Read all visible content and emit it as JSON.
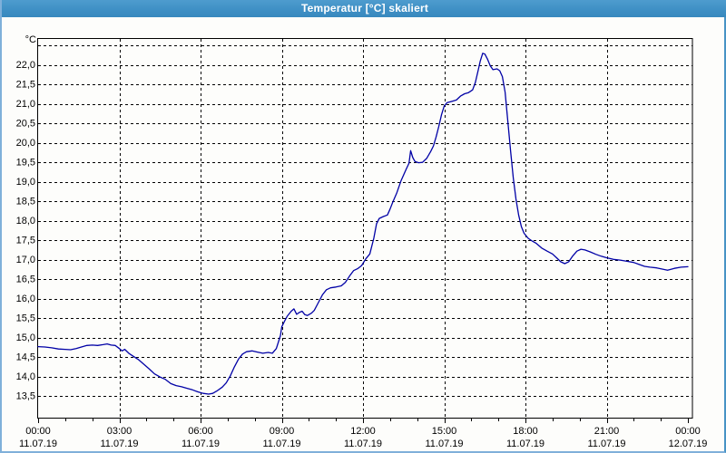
{
  "window": {
    "title": "Temperatur [°C] skaliert"
  },
  "colors": {
    "titlebar_bg": "#3F90C5",
    "titlebar_text": "#FFFFFF",
    "window_border": "#7FB0DA",
    "plot_background": "#FDFDFB",
    "frame": "#000000",
    "gridline": "#000000",
    "label_text": "#000000",
    "line": "#0101A6"
  },
  "y_axis": {
    "unit": "°C",
    "ticks": [
      {
        "label": "22,0",
        "value": 22.0
      },
      {
        "label": "21,5",
        "value": 21.5
      },
      {
        "label": "21,0",
        "value": 21.0
      },
      {
        "label": "20,5",
        "value": 20.5
      },
      {
        "label": "20,0",
        "value": 20.0
      },
      {
        "label": "19,5",
        "value": 19.5
      },
      {
        "label": "19,0",
        "value": 19.0
      },
      {
        "label": "18,5",
        "value": 18.5
      },
      {
        "label": "18,0",
        "value": 18.0
      },
      {
        "label": "17,5",
        "value": 17.5
      },
      {
        "label": "17,0",
        "value": 17.0
      },
      {
        "label": "16,5",
        "value": 16.5
      },
      {
        "label": "16,0",
        "value": 16.0
      },
      {
        "label": "15,5",
        "value": 15.5
      },
      {
        "label": "15,0",
        "value": 15.0
      },
      {
        "label": "14,5",
        "value": 14.5
      },
      {
        "label": "14,0",
        "value": 14.0
      },
      {
        "label": "13,5",
        "value": 13.5
      }
    ]
  },
  "x_axis": {
    "major_ticks": [
      {
        "hour": 0,
        "time": "00:00",
        "date": "11.07.19"
      },
      {
        "hour": 3,
        "time": "03:00",
        "date": "11.07.19"
      },
      {
        "hour": 6,
        "time": "06:00",
        "date": "11.07.19"
      },
      {
        "hour": 9,
        "time": "09:00",
        "date": "11.07.19"
      },
      {
        "hour": 12,
        "time": "12:00",
        "date": "11.07.19"
      },
      {
        "hour": 15,
        "time": "15:00",
        "date": "11.07.19"
      },
      {
        "hour": 18,
        "time": "18:00",
        "date": "11.07.19"
      },
      {
        "hour": 21,
        "time": "21:00",
        "date": "11.07.19"
      },
      {
        "hour": 24,
        "time": "00:00",
        "date": "12.07.19"
      }
    ],
    "minor_tick_every_hours": 1
  },
  "chart_data": {
    "type": "line",
    "title": "Temperatur [°C] skaliert",
    "xlabel": "",
    "ylabel": "°C",
    "xlim_hours": [
      0,
      24
    ],
    "grid": "dashed",
    "grid_y_min": 13.5,
    "grid_y_max": 22.5,
    "grid_y_step": 0.5,
    "grid_x_step_hours": 3,
    "legend": "none",
    "series": [
      {
        "name": "Temperatur",
        "color": "#0101A6",
        "points_hour_temp": [
          [
            0.0,
            14.77
          ],
          [
            0.25,
            14.76
          ],
          [
            0.5,
            14.74
          ],
          [
            0.75,
            14.71
          ],
          [
            1.0,
            14.7
          ],
          [
            1.2,
            14.69
          ],
          [
            1.4,
            14.72
          ],
          [
            1.6,
            14.76
          ],
          [
            1.8,
            14.8
          ],
          [
            2.0,
            14.81
          ],
          [
            2.2,
            14.8
          ],
          [
            2.4,
            14.82
          ],
          [
            2.55,
            14.84
          ],
          [
            2.7,
            14.81
          ],
          [
            2.85,
            14.8
          ],
          [
            3.0,
            14.72
          ],
          [
            3.1,
            14.66
          ],
          [
            3.2,
            14.7
          ],
          [
            3.35,
            14.6
          ],
          [
            3.5,
            14.53
          ],
          [
            3.7,
            14.44
          ],
          [
            3.9,
            14.32
          ],
          [
            4.1,
            14.2
          ],
          [
            4.3,
            14.07
          ],
          [
            4.5,
            13.99
          ],
          [
            4.7,
            13.93
          ],
          [
            4.9,
            13.82
          ],
          [
            5.1,
            13.77
          ],
          [
            5.3,
            13.74
          ],
          [
            5.5,
            13.7
          ],
          [
            5.7,
            13.66
          ],
          [
            5.9,
            13.61
          ],
          [
            6.1,
            13.57
          ],
          [
            6.3,
            13.55
          ],
          [
            6.45,
            13.57
          ],
          [
            6.6,
            13.63
          ],
          [
            6.8,
            13.73
          ],
          [
            6.95,
            13.84
          ],
          [
            7.1,
            14.02
          ],
          [
            7.25,
            14.25
          ],
          [
            7.4,
            14.45
          ],
          [
            7.55,
            14.58
          ],
          [
            7.7,
            14.64
          ],
          [
            7.9,
            14.66
          ],
          [
            8.1,
            14.63
          ],
          [
            8.3,
            14.6
          ],
          [
            8.5,
            14.62
          ],
          [
            8.65,
            14.6
          ],
          [
            8.8,
            14.72
          ],
          [
            8.95,
            15.05
          ],
          [
            9.0,
            15.28
          ],
          [
            9.1,
            15.42
          ],
          [
            9.2,
            15.55
          ],
          [
            9.35,
            15.68
          ],
          [
            9.45,
            15.74
          ],
          [
            9.55,
            15.6
          ],
          [
            9.65,
            15.65
          ],
          [
            9.75,
            15.68
          ],
          [
            9.85,
            15.59
          ],
          [
            9.95,
            15.57
          ],
          [
            10.1,
            15.63
          ],
          [
            10.2,
            15.7
          ],
          [
            10.35,
            15.9
          ],
          [
            10.5,
            16.1
          ],
          [
            10.65,
            16.23
          ],
          [
            10.8,
            16.28
          ],
          [
            11.0,
            16.3
          ],
          [
            11.2,
            16.33
          ],
          [
            11.35,
            16.42
          ],
          [
            11.5,
            16.58
          ],
          [
            11.65,
            16.72
          ],
          [
            11.8,
            16.77
          ],
          [
            11.95,
            16.85
          ],
          [
            12.1,
            17.02
          ],
          [
            12.25,
            17.15
          ],
          [
            12.4,
            17.55
          ],
          [
            12.5,
            17.92
          ],
          [
            12.6,
            18.06
          ],
          [
            12.75,
            18.11
          ],
          [
            12.9,
            18.15
          ],
          [
            13.0,
            18.3
          ],
          [
            13.1,
            18.48
          ],
          [
            13.25,
            18.72
          ],
          [
            13.4,
            19.02
          ],
          [
            13.5,
            19.18
          ],
          [
            13.6,
            19.33
          ],
          [
            13.7,
            19.48
          ],
          [
            13.76,
            19.8
          ],
          [
            13.84,
            19.62
          ],
          [
            13.92,
            19.52
          ],
          [
            14.05,
            19.49
          ],
          [
            14.2,
            19.5
          ],
          [
            14.35,
            19.6
          ],
          [
            14.5,
            19.78
          ],
          [
            14.6,
            19.92
          ],
          [
            14.7,
            20.15
          ],
          [
            14.8,
            20.42
          ],
          [
            14.9,
            20.72
          ],
          [
            15.0,
            20.95
          ],
          [
            15.1,
            21.03
          ],
          [
            15.3,
            21.07
          ],
          [
            15.45,
            21.1
          ],
          [
            15.6,
            21.2
          ],
          [
            15.75,
            21.26
          ],
          [
            15.9,
            21.29
          ],
          [
            16.05,
            21.36
          ],
          [
            16.15,
            21.55
          ],
          [
            16.25,
            21.85
          ],
          [
            16.33,
            22.1
          ],
          [
            16.42,
            22.3
          ],
          [
            16.5,
            22.28
          ],
          [
            16.6,
            22.15
          ],
          [
            16.7,
            21.98
          ],
          [
            16.8,
            21.88
          ],
          [
            16.95,
            21.9
          ],
          [
            17.05,
            21.85
          ],
          [
            17.15,
            21.7
          ],
          [
            17.25,
            21.3
          ],
          [
            17.35,
            20.55
          ],
          [
            17.45,
            19.8
          ],
          [
            17.55,
            19.1
          ],
          [
            17.65,
            18.55
          ],
          [
            17.75,
            18.15
          ],
          [
            17.85,
            17.85
          ],
          [
            17.95,
            17.68
          ],
          [
            18.1,
            17.55
          ],
          [
            18.25,
            17.48
          ],
          [
            18.4,
            17.42
          ],
          [
            18.6,
            17.3
          ],
          [
            18.8,
            17.22
          ],
          [
            19.0,
            17.15
          ],
          [
            19.15,
            17.05
          ],
          [
            19.3,
            16.95
          ],
          [
            19.45,
            16.9
          ],
          [
            19.6,
            16.95
          ],
          [
            19.75,
            17.1
          ],
          [
            19.9,
            17.22
          ],
          [
            20.05,
            17.27
          ],
          [
            20.2,
            17.25
          ],
          [
            20.4,
            17.2
          ],
          [
            20.6,
            17.14
          ],
          [
            20.8,
            17.09
          ],
          [
            21.0,
            17.05
          ],
          [
            21.25,
            17.01
          ],
          [
            21.5,
            16.99
          ],
          [
            21.75,
            16.96
          ],
          [
            22.0,
            16.93
          ],
          [
            22.2,
            16.88
          ],
          [
            22.4,
            16.83
          ],
          [
            22.6,
            16.81
          ],
          [
            22.85,
            16.79
          ],
          [
            23.05,
            16.76
          ],
          [
            23.25,
            16.73
          ],
          [
            23.5,
            16.78
          ],
          [
            23.75,
            16.81
          ],
          [
            24.0,
            16.82
          ]
        ]
      }
    ]
  }
}
